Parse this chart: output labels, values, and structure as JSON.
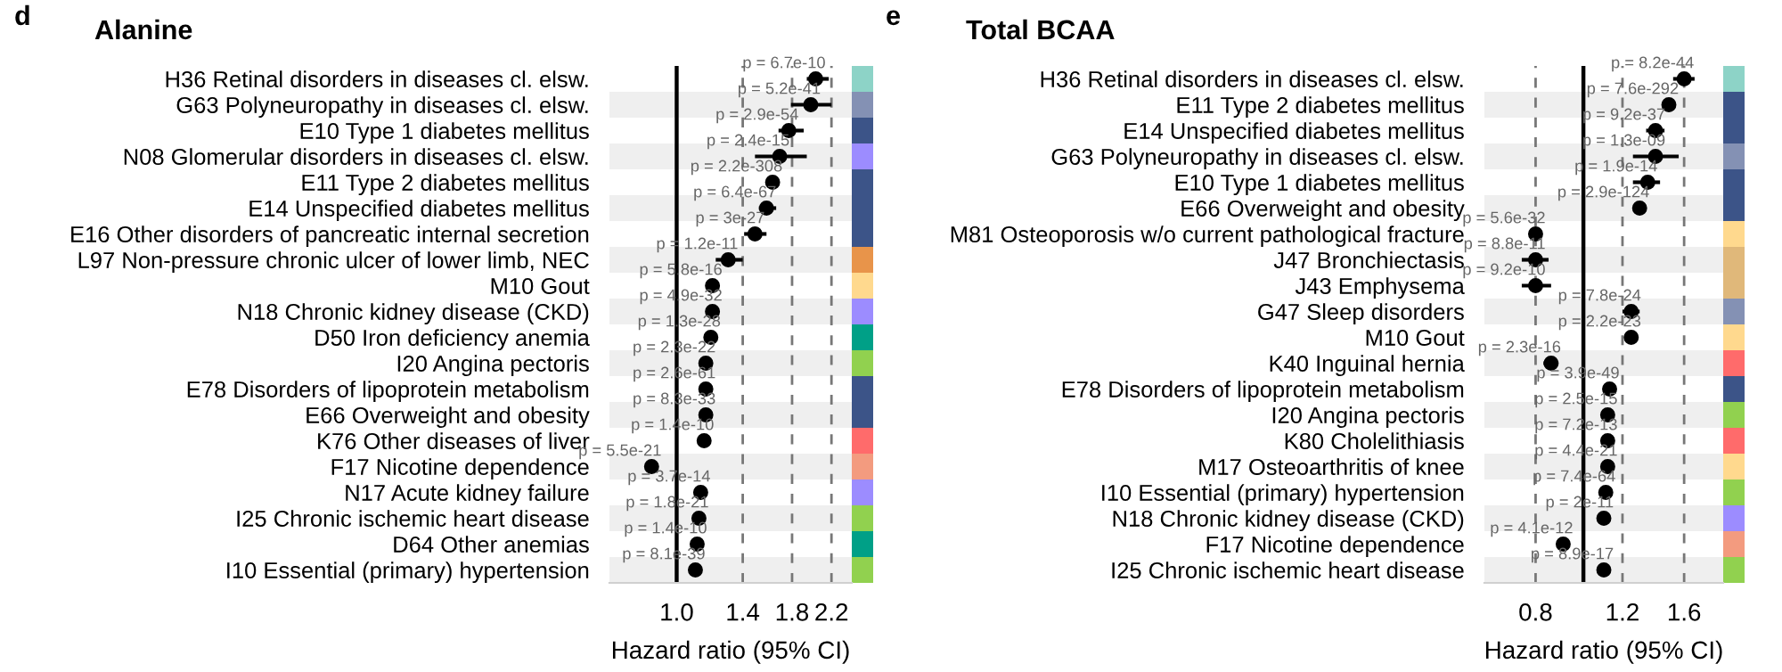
{
  "chart_data": [
    {
      "type": "scatter",
      "orientation": "horizontal",
      "title": "Alanine",
      "xlabel": "Hazard ratio (95% CI)",
      "annotations": [
        "d"
      ],
      "log": "x",
      "grid": "x",
      "marker": "circle",
      "color": "#000000",
      "categories": [
        "H36 Retinal disorders in diseases cl. elsw.",
        "G63 Polyneuropathy in diseases cl. elsw.",
        "E10 Type 1 diabetes mellitus",
        "N08 Glomerular disorders in diseases cl. elsw.",
        "E11 Type 2 diabetes mellitus",
        "E14 Unspecified diabetes mellitus",
        "E16 Other disorders of pancreatic internal secretion",
        "L97 Non-pressure chronic ulcer of lower limb, NEC",
        "M10 Gout",
        "N18 Chronic kidney disease (CKD)",
        "D50 Iron deficiency anemia",
        "I20 Angina pectoris",
        "E78 Disorders of lipoprotein metabolism",
        "E66 Overweight and obesity",
        "K76 Other diseases of liver",
        "F17 Nicotine dependence",
        "N17 Acute kidney failure",
        "I25 Chronic ischemic heart disease",
        "D64 Other anemias",
        "I10 Essential (primary) hypertension"
      ],
      "values": [
        2.03,
        1.98,
        1.77,
        1.69,
        1.63,
        1.58,
        1.49,
        1.3,
        1.2,
        1.2,
        1.19,
        1.16,
        1.16,
        1.16,
        1.15,
        0.88,
        1.13,
        1.12,
        1.11,
        1.1
      ],
      "errors": [
        [
          1.94,
          2.17
        ],
        [
          1.79,
          2.2
        ],
        [
          1.68,
          1.91
        ],
        [
          1.49,
          1.94
        ],
        null,
        [
          1.52,
          1.66
        ],
        [
          1.41,
          1.58
        ],
        [
          1.22,
          1.4
        ],
        [
          1.17,
          1.24
        ],
        null,
        null,
        null,
        null,
        null,
        [
          1.12,
          1.19
        ],
        null,
        null,
        null,
        null,
        null
      ],
      "value_labels": [
        "p = 6.7e-10",
        "p = 5.2e-41",
        "p = 2.9e-54",
        "p = 2.4e-15",
        "p = 2.2e-308",
        "p = 6.4e-67",
        "p = 3e-27",
        "p = 1.2e-11",
        "p = 5.8e-16",
        "p = 4.9e-32",
        "p = 1.3e-28",
        "p = 2.3e-22",
        "p = 2.6e-61",
        "p = 8.3e-33",
        "p = 1.4e-10",
        "p = 5.5e-21",
        "p = 3.7e-14",
        "p = 1.8e-21",
        "p = 1.4e-10",
        "p = 8.1e-39"
      ],
      "xlim": [
        0.71,
        2.44
      ],
      "xticks": [
        {
          "value": 1,
          "label": "1.0"
        },
        1.4,
        1.8,
        2.2
      ],
      "ref_lines": [
        {
          "axis": "x",
          "value": 1,
          "color": "#000000"
        }
      ]
    },
    {
      "type": "scatter",
      "orientation": "horizontal",
      "title": "Total BCAA",
      "xlabel": "Hazard ratio (95% CI)",
      "annotations": [
        "e"
      ],
      "log": "x",
      "grid": "x",
      "marker": "circle",
      "color": "#000000",
      "categories": [
        "H36 Retinal disorders in diseases cl. elsw.",
        "E11 Type 2 diabetes mellitus",
        "E14 Unspecified diabetes mellitus",
        "G63 Polyneuropathy in diseases cl. elsw.",
        "E10 Type 1 diabetes mellitus",
        "E66 Overweight and obesity",
        "M81 Osteoporosis w/o current pathological fracture",
        "J47 Bronchiectasis",
        "J43 Emphysema",
        "G47 Sleep disorders",
        "M10 Gout",
        "K40 Inguinal hernia",
        "E78 Disorders of lipoprotein metabolism",
        "I20 Angina pectoris",
        "K80 Cholelithiasis",
        "M17 Osteoarthritis of knee",
        "I10 Essential (primary) hypertension",
        "N18 Chronic kidney disease (CKD)",
        "F17 Nicotine dependence",
        "I25 Chronic ischemic heart disease"
      ],
      "values": [
        1.6,
        1.49,
        1.4,
        1.4,
        1.35,
        1.3,
        0.8,
        0.8,
        0.8,
        1.25,
        1.25,
        0.86,
        1.13,
        1.12,
        1.12,
        1.12,
        1.11,
        1.1,
        0.91,
        1.1
      ],
      "errors": [
        [
          1.52,
          1.68
        ],
        null,
        [
          1.34,
          1.46
        ],
        [
          1.26,
          1.56
        ],
        [
          1.26,
          1.43
        ],
        null,
        null,
        [
          0.75,
          0.85
        ],
        [
          0.75,
          0.86
        ],
        [
          1.2,
          1.3
        ],
        [
          1.21,
          1.29
        ],
        [
          0.83,
          0.89
        ],
        null,
        null,
        null,
        null,
        null,
        null,
        null,
        null
      ],
      "value_labels": [
        "p = 8.2e-44",
        "p = 7.6e-292",
        "p = 9.2e-37",
        "p = 1.3e-09",
        "p = 1.9e-14",
        "p = 2.9e-124",
        "p = 5.6e-32",
        "p = 8.8e-11",
        "p = 9.2e-10",
        "p = 7.8e-24",
        "p = 2.2e-23",
        "p = 2.3e-16",
        "p = 3.9e-49",
        "p = 2.5e-15",
        "p = 7.2e-13",
        "p = 4.4e-21",
        "p = 7.4e-64",
        "p = 2e-11",
        "p = 4.1e-12",
        "p = 8.9e-17"
      ],
      "xlim": [
        0.63,
        1.92
      ],
      "xticks": [
        0.8,
        1.2,
        1.6
      ],
      "ref_lines": [
        {
          "axis": "x",
          "value": 1,
          "color": "#000000"
        }
      ]
    }
  ]
}
